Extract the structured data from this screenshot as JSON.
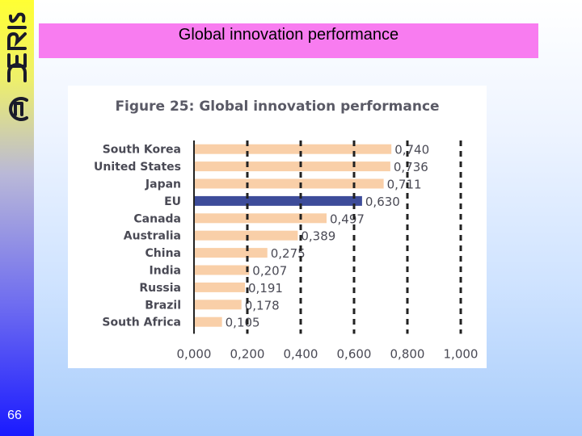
{
  "slide": {
    "title": "Global innovation performance",
    "page_number": "66"
  },
  "colors": {
    "title_band": "#f87cf0",
    "bar_default": "#f9cfa8",
    "bar_highlight": "#3d4c9a",
    "gridline": "#222222"
  },
  "chart_data": {
    "type": "bar",
    "orientation": "horizontal",
    "title": "Figure 25: Global innovation performance",
    "categories": [
      "South Korea",
      "United States",
      "Japan",
      "EU",
      "Canada",
      "Australia",
      "China",
      "India",
      "Russia",
      "Brazil",
      "South Africa"
    ],
    "values": [
      0.74,
      0.736,
      0.711,
      0.63,
      0.497,
      0.389,
      0.275,
      0.207,
      0.191,
      0.178,
      0.105
    ],
    "value_labels": [
      "0,740",
      "0,736",
      "0,711",
      "0,630",
      "0,497",
      "0,389",
      "0,275",
      "0,207",
      "0,191",
      "0,178",
      "0,105"
    ],
    "highlight_category": "EU",
    "x_ticks": [
      0,
      0.2,
      0.4,
      0.6,
      0.8,
      1.0
    ],
    "x_tick_labels": [
      "0,000",
      "0,200",
      "0,400",
      "0,600",
      "0,800",
      "1,000"
    ],
    "xlim": [
      0,
      1.0
    ],
    "grid": "dashed vertical"
  }
}
